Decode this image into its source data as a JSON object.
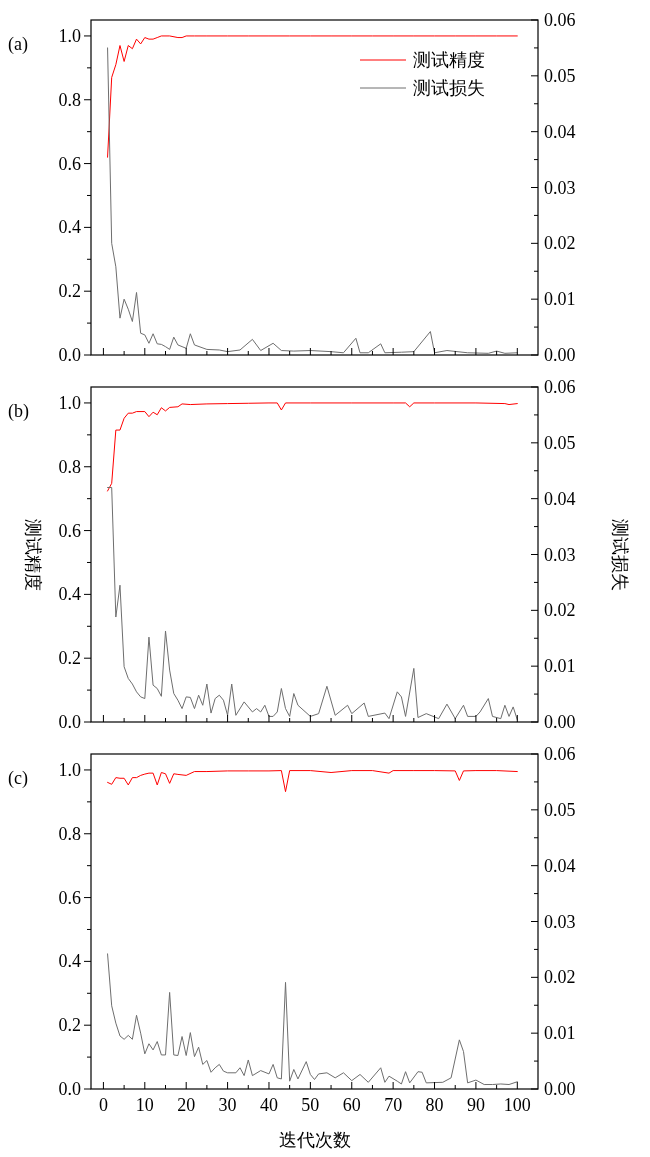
{
  "chart_data": [
    {
      "type": "line",
      "title": "(a)",
      "xlim": [
        -3,
        105
      ],
      "ylim": [
        0,
        1.05
      ],
      "y2lim": [
        0,
        0.06
      ],
      "xticks": [
        0,
        {
          "value": 5,
          "label": null
        },
        10,
        {
          "value": 15,
          "label": null
        },
        20,
        {
          "value": 25,
          "label": null
        },
        30,
        {
          "value": 35,
          "label": null
        },
        40,
        {
          "value": 45,
          "label": null
        },
        50,
        {
          "value": 55,
          "label": null
        },
        60,
        {
          "value": 65,
          "label": null
        },
        70,
        {
          "value": 75,
          "label": null
        },
        80,
        {
          "value": 85,
          "label": null
        },
        90,
        {
          "value": 95,
          "label": null
        },
        100
      ],
      "yticks": [
        {
          "value": 0,
          "label": "0.0"
        },
        {
          "value": 0.1,
          "label": null
        },
        {
          "value": 0.2,
          "label": "0.2"
        },
        {
          "value": 0.3,
          "label": null
        },
        {
          "value": 0.4,
          "label": "0.4"
        },
        {
          "value": 0.5,
          "label": null
        },
        {
          "value": 0.6,
          "label": "0.6"
        },
        {
          "value": 0.7,
          "label": null
        },
        {
          "value": 0.8,
          "label": "0.8"
        },
        {
          "value": 0.9,
          "label": null
        },
        {
          "value": 1,
          "label": "1.0"
        }
      ],
      "y2ticks": [
        {
          "value": 0,
          "label": "0.00"
        },
        {
          "value": 0.005,
          "label": null
        },
        {
          "value": 0.01,
          "label": "0.01"
        },
        {
          "value": 0.015,
          "label": null
        },
        {
          "value": 0.02,
          "label": "0.02"
        },
        {
          "value": 0.025,
          "label": null
        },
        {
          "value": 0.03,
          "label": "0.03"
        },
        {
          "value": 0.035,
          "label": null
        },
        {
          "value": 0.04,
          "label": "0.04"
        },
        {
          "value": 0.045,
          "label": null
        },
        {
          "value": 0.05,
          "label": "0.05"
        },
        {
          "value": 0.055,
          "label": null
        },
        {
          "value": 0.06,
          "label": "0.06"
        }
      ],
      "tick_labels": "y",
      "legend": "top right",
      "series": [
        {
          "name": "测试精度",
          "color": "#ff0000",
          "x": [
            1,
            2,
            3,
            4,
            5,
            6,
            7,
            8,
            9,
            10,
            11,
            12,
            13,
            14,
            16,
            18,
            19,
            20,
            22,
            25,
            30,
            35,
            40,
            45,
            50,
            55,
            60,
            65,
            70,
            75,
            80,
            85,
            90,
            95,
            100
          ],
          "values": [
            0.62,
            0.87,
            0.91,
            0.97,
            0.92,
            0.97,
            0.96,
            0.99,
            0.975,
            0.995,
            0.99,
            0.99,
            0.995,
            1.0,
            1.0,
            0.995,
            0.995,
            1.0,
            1.0,
            1.0,
            1.0,
            1.0,
            1.0,
            1.0,
            1.0,
            1.0,
            1.0,
            1.0,
            1.0,
            1.0,
            1.0,
            1.0,
            1.0,
            1.0,
            1.0
          ]
        },
        {
          "name": "测试损失",
          "color": "#6e6e6e",
          "axis": "y2",
          "x": [
            1,
            2,
            3,
            4,
            5,
            6,
            7,
            8,
            9,
            10,
            11,
            12,
            13,
            14,
            15,
            16,
            17,
            18,
            19,
            20,
            21,
            22,
            25,
            28,
            30,
            33,
            36,
            38,
            41,
            43,
            46,
            50,
            55,
            58,
            61,
            62,
            64,
            67,
            68,
            72,
            75,
            79,
            80,
            83,
            88,
            93,
            95,
            97,
            100
          ],
          "values": [
            0.055,
            0.02,
            0.0158,
            0.0066,
            0.01,
            0.0082,
            0.006,
            0.0112,
            0.0039,
            0.0036,
            0.0021,
            0.0038,
            0.002,
            0.0019,
            0.0015,
            0.001,
            0.0032,
            0.0018,
            0.0015,
            0.0012,
            0.0038,
            0.0018,
            0.001,
            0.0009,
            0.0006,
            0.0009,
            0.0028,
            0.0008,
            0.0021,
            0.0008,
            0.0007,
            0.0008,
            0.0006,
            0.0004,
            0.003,
            0.0004,
            0.0004,
            0.002,
            0.0004,
            0.0005,
            0.0006,
            0.0042,
            0.0004,
            0.0008,
            0.0004,
            0.0003,
            0.0007,
            0.0003,
            0.0004
          ]
        }
      ]
    },
    {
      "type": "line",
      "title": "(b)",
      "ylabel": "测试精度",
      "y2label": "测试损失",
      "xlim": [
        -3,
        105
      ],
      "ylim": [
        0,
        1.05
      ],
      "y2lim": [
        0,
        0.06
      ],
      "xticks": [
        0,
        {
          "value": 5,
          "label": null
        },
        10,
        {
          "value": 15,
          "label": null
        },
        20,
        {
          "value": 25,
          "label": null
        },
        30,
        {
          "value": 35,
          "label": null
        },
        40,
        {
          "value": 45,
          "label": null
        },
        50,
        {
          "value": 55,
          "label": null
        },
        60,
        {
          "value": 65,
          "label": null
        },
        70,
        {
          "value": 75,
          "label": null
        },
        80,
        {
          "value": 85,
          "label": null
        },
        90,
        {
          "value": 95,
          "label": null
        },
        100
      ],
      "yticks": [
        {
          "value": 0,
          "label": "0.0"
        },
        {
          "value": 0.1,
          "label": null
        },
        {
          "value": 0.2,
          "label": "0.2"
        },
        {
          "value": 0.3,
          "label": null
        },
        {
          "value": 0.4,
          "label": "0.4"
        },
        {
          "value": 0.5,
          "label": null
        },
        {
          "value": 0.6,
          "label": "0.6"
        },
        {
          "value": 0.7,
          "label": null
        },
        {
          "value": 0.8,
          "label": "0.8"
        },
        {
          "value": 0.9,
          "label": null
        },
        {
          "value": 1,
          "label": "1.0"
        }
      ],
      "y2ticks": [
        {
          "value": 0,
          "label": "0.00"
        },
        {
          "value": 0.005,
          "label": null
        },
        {
          "value": 0.01,
          "label": "0.01"
        },
        {
          "value": 0.015,
          "label": null
        },
        {
          "value": 0.02,
          "label": "0.02"
        },
        {
          "value": 0.025,
          "label": null
        },
        {
          "value": 0.03,
          "label": "0.03"
        },
        {
          "value": 0.035,
          "label": null
        },
        {
          "value": 0.04,
          "label": "0.04"
        },
        {
          "value": 0.045,
          "label": null
        },
        {
          "value": 0.05,
          "label": "0.05"
        },
        {
          "value": 0.055,
          "label": null
        },
        {
          "value": 0.06,
          "label": "0.06"
        }
      ],
      "tick_labels": "y",
      "series": [
        {
          "color": "#ff0000",
          "x": [
            1,
            2,
            3,
            4,
            5,
            6,
            7,
            8,
            10,
            11,
            12,
            13,
            14,
            15,
            16,
            18,
            19,
            21,
            25,
            30,
            35,
            40,
            42,
            43,
            44,
            50,
            60,
            70,
            73,
            74,
            75,
            80,
            90,
            97,
            98,
            100
          ],
          "values": [
            0.724,
            0.748,
            0.915,
            0.915,
            0.952,
            0.968,
            0.968,
            0.973,
            0.973,
            0.957,
            0.971,
            0.963,
            0.985,
            0.975,
            0.986,
            0.988,
            0.997,
            0.995,
            0.997,
            0.998,
            0.999,
            1.0,
            1.0,
            0.978,
            1.0,
            1.0,
            1.0,
            1.0,
            1.0,
            0.988,
            1.0,
            1.0,
            1.0,
            0.998,
            0.995,
            0.998
          ]
        },
        {
          "color": "#6e6e6e",
          "axis": "y2",
          "x": [
            1,
            2,
            3,
            4,
            5,
            6,
            7,
            8,
            9,
            10,
            11,
            12,
            13,
            14,
            15,
            16,
            17,
            18,
            19,
            20,
            21,
            22,
            23,
            24,
            25,
            26,
            27,
            28,
            29,
            30,
            31,
            32,
            34,
            36,
            37,
            38,
            39,
            40,
            41,
            42,
            43,
            44,
            45,
            46,
            47,
            50,
            52,
            54,
            56,
            59,
            60,
            63,
            64,
            68,
            69,
            71,
            72,
            73,
            75,
            76,
            78,
            81,
            83,
            85,
            87,
            88,
            90,
            91,
            93,
            94,
            96,
            97,
            98,
            99,
            100
          ],
          "values": [
            0.042,
            0.042,
            0.0188,
            0.0245,
            0.0099,
            0.0078,
            0.0068,
            0.0054,
            0.0045,
            0.0042,
            0.0152,
            0.0066,
            0.006,
            0.0046,
            0.0163,
            0.0093,
            0.0051,
            0.0039,
            0.0024,
            0.0045,
            0.0044,
            0.0024,
            0.0048,
            0.003,
            0.0068,
            0.0016,
            0.0042,
            0.0048,
            0.0039,
            0.0012,
            0.0068,
            0.0012,
            0.0036,
            0.0018,
            0.0024,
            0.0018,
            0.003,
            0.001,
            0.001,
            0.0018,
            0.006,
            0.0024,
            0.001,
            0.0051,
            0.003,
            0.001,
            0.0015,
            0.0064,
            0.0012,
            0.003,
            0.0015,
            0.0034,
            0.001,
            0.0016,
            0.0006,
            0.0054,
            0.0045,
            0.001,
            0.0096,
            0.0008,
            0.0015,
            0.0006,
            0.0032,
            0.0006,
            0.003,
            0.001,
            0.001,
            0.0018,
            0.0042,
            0.001,
            0.0006,
            0.003,
            0.001,
            0.0027,
            0.0004
          ]
        }
      ]
    },
    {
      "type": "line",
      "title": "(c)",
      "xlabel": "迭代次数",
      "xlim": [
        -3,
        105
      ],
      "ylim": [
        0,
        1.05
      ],
      "y2lim": [
        0,
        0.06
      ],
      "xticks": [
        0,
        {
          "value": 5,
          "label": null
        },
        10,
        {
          "value": 15,
          "label": null
        },
        20,
        {
          "value": 25,
          "label": null
        },
        30,
        {
          "value": 35,
          "label": null
        },
        40,
        {
          "value": 45,
          "label": null
        },
        50,
        {
          "value": 55,
          "label": null
        },
        60,
        {
          "value": 65,
          "label": null
        },
        70,
        {
          "value": 75,
          "label": null
        },
        80,
        {
          "value": 85,
          "label": null
        },
        90,
        {
          "value": 95,
          "label": null
        },
        100
      ],
      "yticks": [
        {
          "value": 0,
          "label": "0.0"
        },
        {
          "value": 0.1,
          "label": null
        },
        {
          "value": 0.2,
          "label": "0.2"
        },
        {
          "value": 0.3,
          "label": null
        },
        {
          "value": 0.4,
          "label": "0.4"
        },
        {
          "value": 0.5,
          "label": null
        },
        {
          "value": 0.6,
          "label": "0.6"
        },
        {
          "value": 0.7,
          "label": null
        },
        {
          "value": 0.8,
          "label": "0.8"
        },
        {
          "value": 0.9,
          "label": null
        },
        {
          "value": 1,
          "label": "1.0"
        }
      ],
      "y2ticks": [
        {
          "value": 0,
          "label": "0.00"
        },
        {
          "value": 0.005,
          "label": null
        },
        {
          "value": 0.01,
          "label": "0.01"
        },
        {
          "value": 0.015,
          "label": null
        },
        {
          "value": 0.02,
          "label": "0.02"
        },
        {
          "value": 0.025,
          "label": null
        },
        {
          "value": 0.03,
          "label": "0.03"
        },
        {
          "value": 0.035,
          "label": null
        },
        {
          "value": 0.04,
          "label": "0.04"
        },
        {
          "value": 0.045,
          "label": null
        },
        {
          "value": 0.05,
          "label": "0.05"
        },
        {
          "value": 0.055,
          "label": null
        },
        {
          "value": 0.06,
          "label": "0.06"
        }
      ],
      "series": [
        {
          "color": "#ff0000",
          "x": [
            1,
            2,
            3,
            4,
            5,
            6,
            7,
            8,
            9,
            10,
            11,
            12,
            13,
            14,
            15,
            16,
            17,
            18,
            20,
            22,
            25,
            30,
            35,
            40,
            43,
            44,
            45,
            50,
            55,
            60,
            65,
            69,
            70,
            75,
            80,
            85,
            86,
            87,
            90,
            95,
            100
          ],
          "values": [
            0.961,
            0.955,
            0.976,
            0.974,
            0.974,
            0.953,
            0.976,
            0.976,
            0.983,
            0.987,
            0.99,
            0.99,
            0.953,
            0.992,
            0.988,
            0.958,
            0.988,
            0.986,
            0.983,
            0.995,
            0.995,
            0.997,
            0.997,
            0.997,
            0.998,
            0.932,
            0.998,
            0.998,
            0.992,
            0.998,
            0.998,
            0.99,
            0.998,
            0.998,
            0.998,
            0.997,
            0.967,
            0.997,
            0.998,
            0.998,
            0.995
          ]
        },
        {
          "color": "#6e6e6e",
          "axis": "y2",
          "x": [
            1,
            2,
            3,
            4,
            5,
            6,
            7,
            8,
            9,
            10,
            11,
            12,
            13,
            14,
            15,
            16,
            17,
            18,
            19,
            20,
            21,
            22,
            23,
            24,
            25,
            26,
            27,
            28,
            29,
            30,
            32,
            33,
            34,
            35,
            36,
            38,
            40,
            41,
            42,
            43,
            44,
            45,
            46,
            47,
            49,
            50,
            51,
            52,
            54,
            56,
            58,
            60,
            62,
            64,
            67,
            68,
            69,
            71,
            72,
            73,
            74,
            76,
            77,
            78,
            82,
            84,
            86,
            87,
            88,
            90,
            92,
            94,
            96,
            98,
            100
          ],
          "values": [
            0.0242,
            0.0149,
            0.0118,
            0.0095,
            0.0089,
            0.0096,
            0.0089,
            0.0132,
            0.01,
            0.0063,
            0.0081,
            0.007,
            0.0085,
            0.0061,
            0.0061,
            0.0173,
            0.0061,
            0.006,
            0.0094,
            0.006,
            0.0101,
            0.0058,
            0.0075,
            0.0044,
            0.0051,
            0.003,
            0.0038,
            0.0044,
            0.0032,
            0.0029,
            0.0029,
            0.0038,
            0.0024,
            0.0052,
            0.0024,
            0.0033,
            0.0027,
            0.0044,
            0.002,
            0.0018,
            0.0191,
            0.0014,
            0.0035,
            0.0018,
            0.0049,
            0.0026,
            0.0017,
            0.0027,
            0.0029,
            0.002,
            0.0029,
            0.0015,
            0.0026,
            0.0012,
            0.0038,
            0.0012,
            0.0023,
            0.0014,
            0.0009,
            0.0031,
            0.0011,
            0.0031,
            0.003,
            0.0011,
            0.0012,
            0.002,
            0.0088,
            0.0067,
            0.0011,
            0.0016,
            0.0008,
            0.0008,
            0.0009,
            0.0008,
            0.0013
          ]
        }
      ]
    }
  ]
}
